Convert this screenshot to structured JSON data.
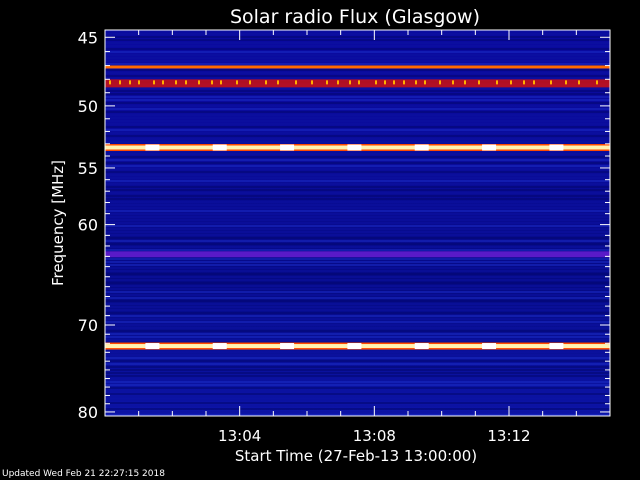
{
  "footer": {
    "updated": "Updated Wed Feb 21 22:27:15 2018"
  },
  "chart_data": {
    "type": "heatmap",
    "title": "Solar radio Flux (Glasgow)",
    "xlabel": "Start Time (27-Feb-13 13:00:00)",
    "ylabel": "Frequency [MHz]",
    "x_unit": "minutes after 13:00",
    "xlim": [
      0,
      15
    ],
    "ylim": [
      80,
      45
    ],
    "y_scale": "log",
    "x_ticks": [
      {
        "value": 4,
        "label": "13:04"
      },
      {
        "value": 8,
        "label": "13:08"
      },
      {
        "value": 12,
        "label": "13:12"
      }
    ],
    "y_ticks": [
      {
        "value": 45,
        "label": "45"
      },
      {
        "value": 50,
        "label": "50"
      },
      {
        "value": 55,
        "label": "55"
      },
      {
        "value": 60,
        "label": "60"
      },
      {
        "value": 70,
        "label": "70"
      },
      {
        "value": 80,
        "label": "80"
      }
    ],
    "colors": {
      "background": "#000000",
      "low": "#000080",
      "mid": "#1a28c8",
      "band_orange": "#ff6a00",
      "band_red": "#d01010",
      "band_hot": "#fff2b0",
      "band_purple": "#5a1ac8",
      "axis": "#ffffff"
    },
    "bands": [
      {
        "freq": 47.1,
        "intensity": "orange"
      },
      {
        "freq": 48.3,
        "intensity": "dotted-red"
      },
      {
        "freq": 53.3,
        "intensity": "hot"
      },
      {
        "freq": 62.8,
        "intensity": "purple"
      },
      {
        "freq": 72.3,
        "intensity": "hot"
      }
    ]
  }
}
